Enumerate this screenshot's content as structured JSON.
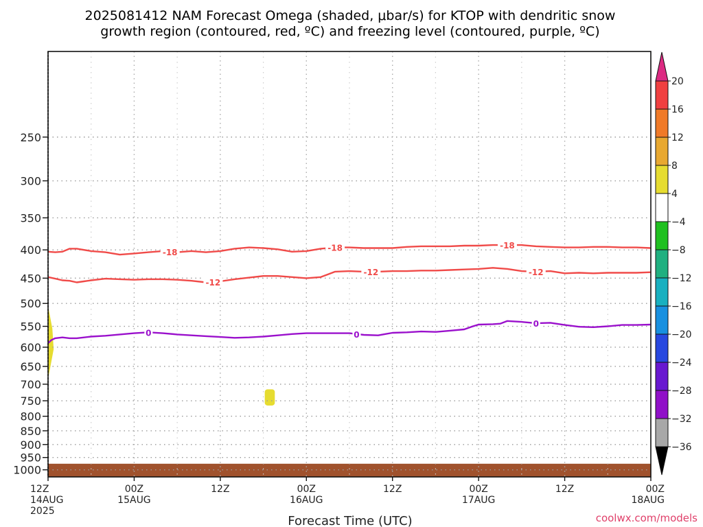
{
  "header": {
    "title_line1": "2025081412 NAM Forecast Omega (shaded, μbar/s) for KTOP with dendritic snow",
    "title_line2": "growth region (contoured, red, ºC) and freezing level (contoured, purple, ºC)"
  },
  "footer": {
    "credit": "coolwx.com/models"
  },
  "colors": {
    "red_contour": "#f04a48",
    "purple_contour": "#9a10cc",
    "ground": "#a0522d",
    "omega_positive_4_8": "#e6dc30",
    "grid": "#999999"
  },
  "chart_data": {
    "type": "contour",
    "xlabel": "Forecast Time (UTC)",
    "ylabel": "",
    "x_range_hours": [
      0,
      84
    ],
    "x_ticks": [
      {
        "hour": 0,
        "lines": [
          "12Z",
          "14AUG",
          "2025"
        ]
      },
      {
        "hour": 12,
        "lines": [
          "00Z",
          "15AUG"
        ]
      },
      {
        "hour": 24,
        "lines": [
          "12Z"
        ]
      },
      {
        "hour": 36,
        "lines": [
          "00Z",
          "16AUG"
        ]
      },
      {
        "hour": 48,
        "lines": [
          "12Z"
        ]
      },
      {
        "hour": 60,
        "lines": [
          "00Z",
          "17AUG"
        ]
      },
      {
        "hour": 72,
        "lines": [
          "12Z"
        ]
      },
      {
        "hour": 84,
        "lines": [
          "00Z",
          "18AUG"
        ]
      }
    ],
    "minor_grid_hours": [
      6,
      18,
      30,
      42,
      54,
      66,
      78
    ],
    "y_axis": {
      "scale": "log-pressure (hPa)",
      "range": [
        1030,
        175
      ],
      "ticks": [
        250,
        300,
        350,
        400,
        450,
        500,
        550,
        600,
        650,
        700,
        750,
        800,
        850,
        900,
        950,
        1000
      ]
    },
    "contours": [
      {
        "label": "-18",
        "color": "#f04a48",
        "points": [
          [
            0,
            403
          ],
          [
            1,
            404
          ],
          [
            2,
            403
          ],
          [
            3,
            398
          ],
          [
            4,
            398
          ],
          [
            6,
            402
          ],
          [
            8,
            404
          ],
          [
            10,
            408
          ],
          [
            12,
            406
          ],
          [
            14,
            404
          ],
          [
            16,
            402
          ],
          [
            18,
            404
          ],
          [
            20,
            402
          ],
          [
            22,
            404
          ],
          [
            24,
            402
          ],
          [
            26,
            398
          ],
          [
            28,
            396
          ],
          [
            30,
            397
          ],
          [
            32,
            399
          ],
          [
            34,
            403
          ],
          [
            36,
            402
          ],
          [
            38,
            398
          ],
          [
            40,
            396
          ],
          [
            42,
            396
          ],
          [
            44,
            397
          ],
          [
            46,
            397
          ],
          [
            48,
            397
          ],
          [
            50,
            395
          ],
          [
            52,
            394
          ],
          [
            54,
            394
          ],
          [
            56,
            394
          ],
          [
            58,
            393
          ],
          [
            60,
            393
          ],
          [
            62,
            392
          ],
          [
            64,
            392
          ],
          [
            66,
            392
          ],
          [
            68,
            394
          ],
          [
            70,
            395
          ],
          [
            72,
            396
          ],
          [
            74,
            396
          ],
          [
            76,
            395
          ],
          [
            78,
            395
          ],
          [
            80,
            396
          ],
          [
            82,
            396
          ],
          [
            84,
            397
          ]
        ],
        "label_hours": [
          17,
          40,
          64
        ]
      },
      {
        "label": "-12",
        "color": "#f04a48",
        "points": [
          [
            0,
            448
          ],
          [
            1,
            451
          ],
          [
            2,
            454
          ],
          [
            3,
            455
          ],
          [
            4,
            458
          ],
          [
            5,
            456
          ],
          [
            6,
            454
          ],
          [
            8,
            451
          ],
          [
            10,
            452
          ],
          [
            12,
            453
          ],
          [
            14,
            452
          ],
          [
            16,
            452
          ],
          [
            18,
            453
          ],
          [
            20,
            455
          ],
          [
            22,
            458
          ],
          [
            24,
            456
          ],
          [
            26,
            452
          ],
          [
            28,
            449
          ],
          [
            30,
            446
          ],
          [
            32,
            446
          ],
          [
            34,
            448
          ],
          [
            36,
            450
          ],
          [
            38,
            448
          ],
          [
            39,
            443
          ],
          [
            40,
            438
          ],
          [
            42,
            437
          ],
          [
            44,
            438
          ],
          [
            46,
            438
          ],
          [
            48,
            437
          ],
          [
            50,
            437
          ],
          [
            52,
            436
          ],
          [
            54,
            436
          ],
          [
            56,
            435
          ],
          [
            58,
            434
          ],
          [
            60,
            433
          ],
          [
            62,
            431
          ],
          [
            64,
            433
          ],
          [
            66,
            437
          ],
          [
            68,
            438
          ],
          [
            70,
            437
          ],
          [
            72,
            441
          ],
          [
            74,
            440
          ],
          [
            76,
            441
          ],
          [
            78,
            440
          ],
          [
            80,
            440
          ],
          [
            82,
            440
          ],
          [
            84,
            439
          ]
        ],
        "label_hours": [
          23,
          45,
          68
        ]
      },
      {
        "label": "0",
        "color": "#9a10cc",
        "points": [
          [
            0,
            590
          ],
          [
            0.5,
            582
          ],
          [
            1,
            578
          ],
          [
            2,
            576
          ],
          [
            3,
            578
          ],
          [
            4,
            578
          ],
          [
            6,
            574
          ],
          [
            8,
            572
          ],
          [
            10,
            569
          ],
          [
            12,
            566
          ],
          [
            14,
            564
          ],
          [
            16,
            566
          ],
          [
            18,
            569
          ],
          [
            20,
            571
          ],
          [
            22,
            573
          ],
          [
            24,
            575
          ],
          [
            26,
            577
          ],
          [
            28,
            576
          ],
          [
            30,
            574
          ],
          [
            32,
            571
          ],
          [
            34,
            568
          ],
          [
            36,
            566
          ],
          [
            38,
            566
          ],
          [
            40,
            566
          ],
          [
            42,
            566
          ],
          [
            44,
            570
          ],
          [
            46,
            571
          ],
          [
            47,
            568
          ],
          [
            48,
            565
          ],
          [
            50,
            564
          ],
          [
            52,
            562
          ],
          [
            54,
            563
          ],
          [
            56,
            560
          ],
          [
            58,
            557
          ],
          [
            59,
            551
          ],
          [
            60,
            546
          ],
          [
            62,
            545
          ],
          [
            63,
            544
          ],
          [
            64,
            538
          ],
          [
            66,
            540
          ],
          [
            68,
            543
          ],
          [
            70,
            542
          ],
          [
            72,
            547
          ],
          [
            74,
            551
          ],
          [
            76,
            552
          ],
          [
            78,
            550
          ],
          [
            80,
            547
          ],
          [
            82,
            547
          ],
          [
            84,
            546
          ]
        ],
        "label_hours": [
          14,
          43,
          68
        ]
      }
    ],
    "shaded_regions": [
      {
        "range": "4 to 8",
        "color": "#e6dc30",
        "hour_start": 0,
        "hour_end": 0.6,
        "p_top": 505,
        "p_bottom": 685
      },
      {
        "range": "4 to 8",
        "color": "#e6dc30",
        "hour_start": 30.2,
        "hour_end": 31.6,
        "p_top": 715,
        "p_bottom": 765
      }
    ],
    "ground_region": {
      "color": "#a0522d",
      "p_top": 975
    },
    "colorbar": {
      "levels": [
        20,
        16,
        12,
        8,
        4,
        -4,
        -8,
        -12,
        -16,
        -20,
        -24,
        -28,
        -32,
        -36
      ],
      "colors": [
        "#dc2a82",
        "#f04040",
        "#f07a28",
        "#e8a830",
        "#e6dc30",
        "#ffffff",
        "#20c020",
        "#20b080",
        "#18b0c0",
        "#1890e0",
        "#2848e0",
        "#6818d0",
        "#9010c8",
        "#a8a8a8",
        "#000000"
      ]
    }
  }
}
